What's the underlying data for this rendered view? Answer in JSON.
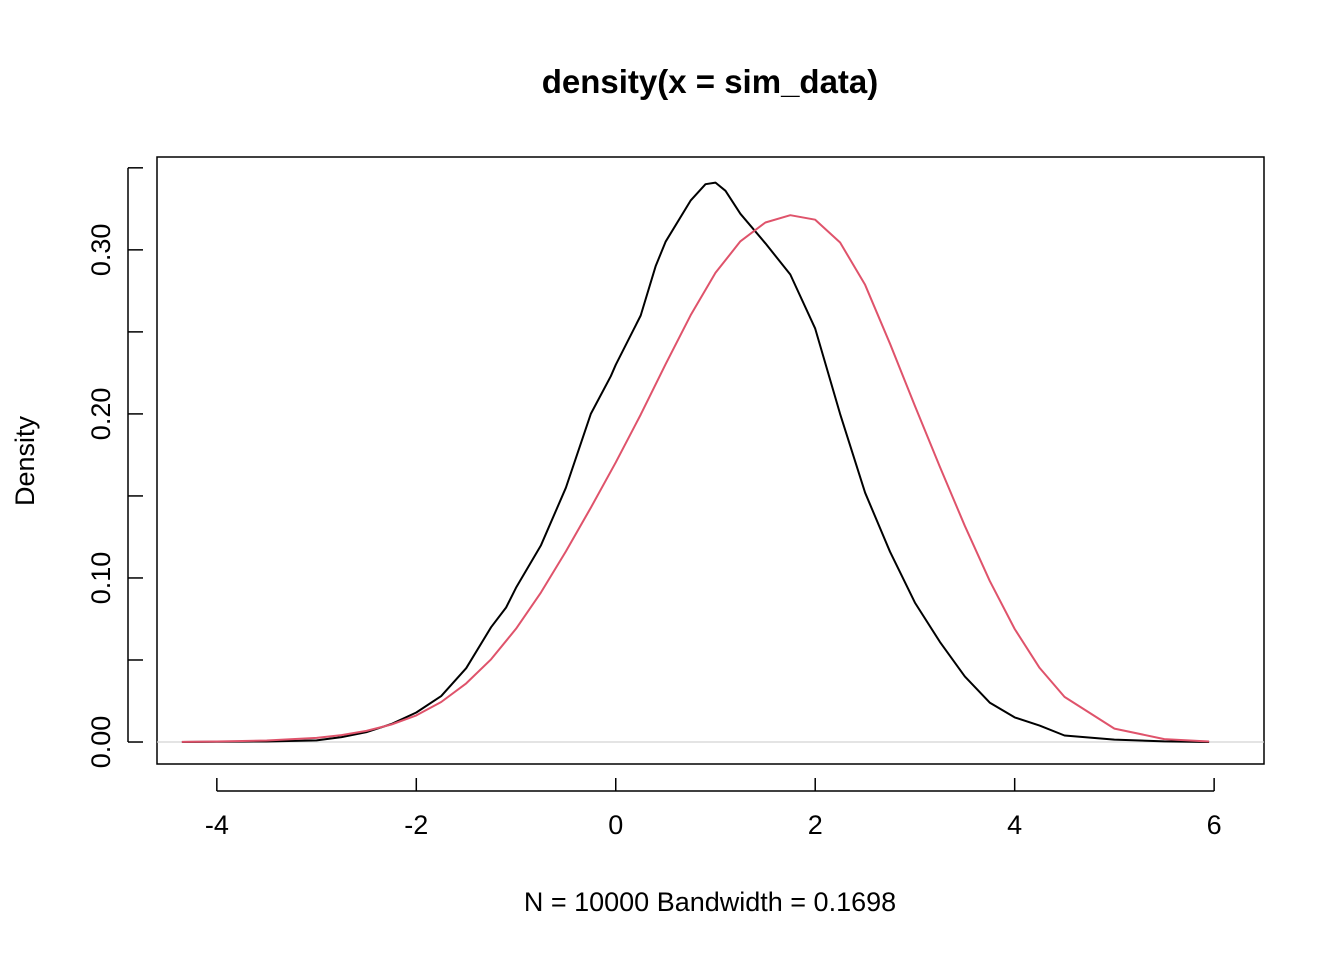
{
  "chart_data": {
    "type": "line",
    "title": "density(x = sim_data)",
    "xlabel": "N = 10000   Bandwidth = 0.1698",
    "ylabel": "Density",
    "xlim": [
      -4.6,
      6.5
    ],
    "ylim": [
      -0.0134,
      0.3566
    ],
    "x_ticks": [
      -4,
      -2,
      0,
      2,
      4,
      6
    ],
    "x_tick_labels": [
      "-4",
      "-2",
      "0",
      "2",
      "4",
      "6"
    ],
    "y_ticks": [
      0.0,
      0.05,
      0.1,
      0.15,
      0.2,
      0.25,
      0.3,
      0.35
    ],
    "y_tick_labels": [
      "0.00",
      "",
      "0.10",
      "",
      "0.20",
      "",
      "0.30",
      ""
    ],
    "zero_line": true,
    "grid": false,
    "series": [
      {
        "color": "#000000",
        "x": [
          -4.35,
          -4.0,
          -3.5,
          -3.0,
          -2.75,
          -2.5,
          -2.25,
          -2.0,
          -1.75,
          -1.5,
          -1.25,
          -1.1,
          -1.0,
          -0.75,
          -0.5,
          -0.25,
          -0.05,
          0.0,
          0.25,
          0.4,
          0.5,
          0.75,
          0.9,
          1.0,
          1.1,
          1.25,
          1.5,
          1.75,
          2.0,
          2.25,
          2.5,
          2.75,
          3.0,
          3.25,
          3.5,
          3.75,
          4.0,
          4.25,
          4.5,
          5.0,
          5.5,
          5.95
        ],
        "y": [
          0.0,
          0.0002,
          0.0003,
          0.001,
          0.003,
          0.006,
          0.011,
          0.018,
          0.028,
          0.045,
          0.07,
          0.082,
          0.094,
          0.12,
          0.155,
          0.2,
          0.223,
          0.23,
          0.26,
          0.29,
          0.305,
          0.33,
          0.34,
          0.341,
          0.336,
          0.322,
          0.304,
          0.285,
          0.252,
          0.2,
          0.152,
          0.116,
          0.085,
          0.061,
          0.04,
          0.024,
          0.015,
          0.01,
          0.004,
          0.0015,
          0.0004,
          0.0
        ]
      },
      {
        "color": "#DF536B",
        "x": [
          -4.35,
          -4.0,
          -3.5,
          -3.0,
          -2.75,
          -2.5,
          -2.25,
          -2.0,
          -1.75,
          -1.5,
          -1.25,
          -1.0,
          -0.75,
          -0.5,
          -0.25,
          0.0,
          0.25,
          0.5,
          0.75,
          1.0,
          1.25,
          1.5,
          1.75,
          2.0,
          2.25,
          2.5,
          2.75,
          3.0,
          3.25,
          3.5,
          3.75,
          4.0,
          4.25,
          4.5,
          5.0,
          5.5,
          5.95
        ],
        "y": [
          0.0001,
          0.0003,
          0.0009,
          0.0025,
          0.0042,
          0.0068,
          0.0107,
          0.0162,
          0.0244,
          0.0357,
          0.0504,
          0.069,
          0.0912,
          0.1162,
          0.1428,
          0.1705,
          0.1996,
          0.2303,
          0.2601,
          0.286,
          0.3052,
          0.3167,
          0.3211,
          0.3184,
          0.3045,
          0.2787,
          0.2428,
          0.2049,
          0.1677,
          0.1318,
          0.0983,
          0.0689,
          0.0452,
          0.0275,
          0.0082,
          0.0018,
          0.0003
        ]
      }
    ]
  }
}
